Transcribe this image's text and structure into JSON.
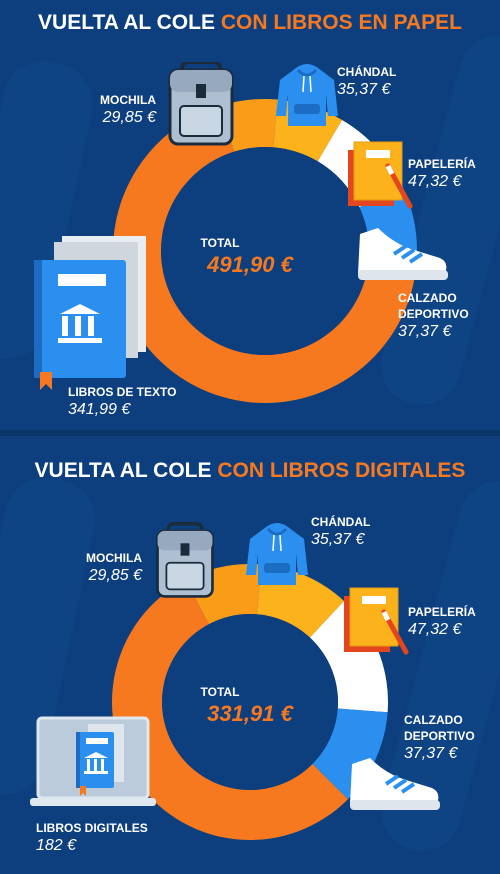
{
  "chart_data": [
    {
      "type": "donut",
      "title": {
        "main": "VUELTA AL COLE ",
        "accent": "CON LIBROS EN PAPEL"
      },
      "total_label": "TOTAL",
      "total": "491,90 €",
      "slices": [
        {
          "name": "CHÁNDAL",
          "value": 35.37,
          "value_label": "35,37 €",
          "color": "#fbb21b"
        },
        {
          "name": "PAPELERÍA",
          "value": 47.32,
          "value_label": "47,32 €",
          "color": "#ffffff"
        },
        {
          "name": "CALZADO DEPORTIVO",
          "value": 37.37,
          "value_label": "37,37 €",
          "color": "#2b8ff0"
        },
        {
          "name": "LIBROS DE TEXTO",
          "value": 341.99,
          "value_label": "341,99 €",
          "color": "#f7791f"
        },
        {
          "name": "MOCHILA",
          "value": 29.85,
          "value_label": "29,85 €",
          "color": "#f99c18"
        }
      ]
    },
    {
      "type": "donut",
      "title": {
        "main": "VUELTA AL COLE ",
        "accent": "CON LIBROS DIGITALES"
      },
      "total_label": "TOTAL",
      "total": "331,91 €",
      "slices": [
        {
          "name": "CHÁNDAL",
          "value": 35.37,
          "value_label": "35,37 €",
          "color": "#fbb21b"
        },
        {
          "name": "PAPELERÍA",
          "value": 47.32,
          "value_label": "47,32 €",
          "color": "#ffffff"
        },
        {
          "name": "CALZADO DEPORTIVO",
          "value": 37.37,
          "value_label": "37,37 €",
          "color": "#2b8ff0"
        },
        {
          "name": "LIBROS DIGITALES",
          "value": 182,
          "value_label": "182 €",
          "color": "#f7791f"
        },
        {
          "name": "MOCHILA",
          "value": 29.85,
          "value_label": "29,85 €",
          "color": "#f99c18"
        }
      ]
    }
  ],
  "icons": {
    "backpack": "backpack-icon",
    "hoodie": "hoodie-icon",
    "notebooks": "notebooks-icon",
    "sneaker": "sneaker-icon",
    "textbooks": "textbooks-icon",
    "laptop_book": "laptop-book-icon"
  },
  "colors": {
    "background": "#0d3f7e",
    "accent": "#f7791f",
    "hole": "#0d3f7e"
  }
}
